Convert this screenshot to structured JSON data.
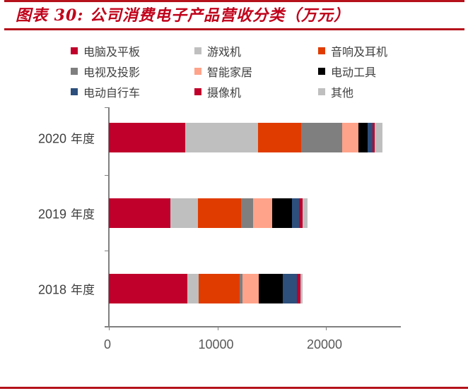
{
  "header": {
    "title": "图表 30: 公司消费电子产品营收分类（万元）"
  },
  "colors": {
    "rule": "#b5121b",
    "title": "#c0001a"
  },
  "legend": [
    {
      "label": "电脑及平板",
      "color": "#c0002b"
    },
    {
      "label": "游戏机",
      "color": "#bfbfbf"
    },
    {
      "label": "音响及耳机",
      "color": "#e03c00"
    },
    {
      "label": "电视及投影",
      "color": "#7f7f7f"
    },
    {
      "label": "智能家居",
      "color": "#ffa38a"
    },
    {
      "label": "电动工具",
      "color": "#000000"
    },
    {
      "label": "电动自行车",
      "color": "#2c4f7c"
    },
    {
      "label": "摄像机",
      "color": "#c0002b"
    },
    {
      "label": "其他",
      "color": "#bfbfbf"
    }
  ],
  "axis": {
    "x_ticks": [
      "0",
      "10000",
      "20000"
    ],
    "categories": [
      {
        "year": "2020",
        "suffix": "年度"
      },
      {
        "year": "2019",
        "suffix": "年度"
      },
      {
        "year": "2018",
        "suffix": "年度"
      }
    ]
  },
  "chart_data": {
    "type": "bar",
    "orientation": "horizontal",
    "stacked": true,
    "title": "图表 30: 公司消费电子产品营收分类（万元）",
    "xlabel": "",
    "ylabel": "",
    "xlim": [
      0,
      27000
    ],
    "x_ticks": [
      0,
      10000,
      20000
    ],
    "grid": false,
    "legend_position": "top",
    "categories": [
      "2020 年度",
      "2019 年度",
      "2018 年度"
    ],
    "series": [
      {
        "name": "电脑及平板",
        "color": "#c0002b",
        "values": [
          7060,
          5650,
          7210
        ]
      },
      {
        "name": "游戏机",
        "color": "#bfbfbf",
        "values": [
          6670,
          2540,
          1040
        ]
      },
      {
        "name": "音响及耳机",
        "color": "#e03c00",
        "values": [
          4020,
          3970,
          3780
        ]
      },
      {
        "name": "电视及投影",
        "color": "#7f7f7f",
        "values": [
          3750,
          1130,
          260
        ]
      },
      {
        "name": "智能家居",
        "color": "#ffa38a",
        "values": [
          1520,
          1760,
          1540
        ]
      },
      {
        "name": "电动工具",
        "color": "#000000",
        "values": [
          800,
          1820,
          2230
        ]
      },
      {
        "name": "电动自行车",
        "color": "#2c4f7c",
        "values": [
          460,
          680,
          1240
        ]
      },
      {
        "name": "摄像机",
        "color": "#c0002b",
        "values": [
          215,
          300,
          390
        ]
      },
      {
        "name": "其他",
        "color": "#bfbfbf",
        "values": [
          700,
          440,
          150
        ]
      }
    ]
  }
}
